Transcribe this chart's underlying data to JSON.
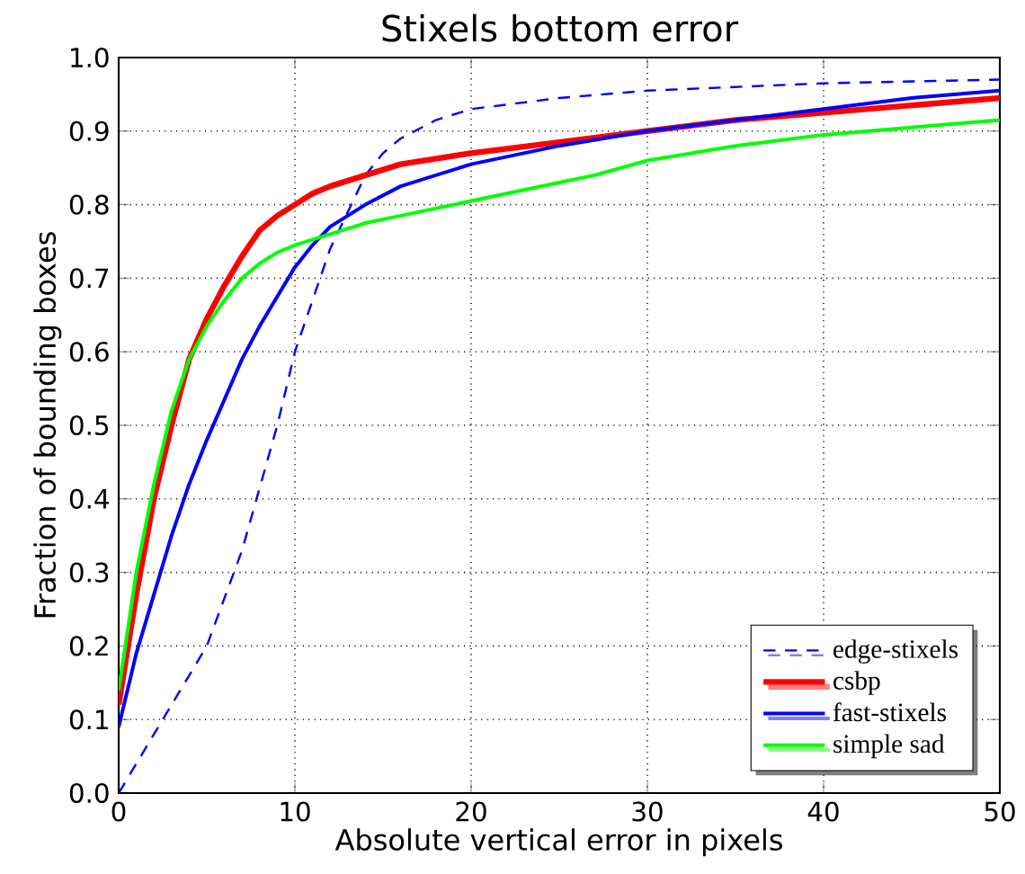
{
  "chart_data": {
    "type": "line",
    "title": "Stixels bottom error",
    "xlabel": "Absolute vertical error in pixels",
    "ylabel": "Fraction of bounding boxes",
    "xlim": [
      0,
      50
    ],
    "ylim": [
      0,
      1
    ],
    "xticks": [
      0,
      10,
      20,
      30,
      40,
      50
    ],
    "yticks": [
      {
        "value": 0,
        "label": "0.0"
      },
      {
        "value": 0.1,
        "label": "0.1"
      },
      {
        "value": 0.2,
        "label": "0.2"
      },
      {
        "value": 0.3,
        "label": "0.3"
      },
      {
        "value": 0.4,
        "label": "0.4"
      },
      {
        "value": 0.5,
        "label": "0.5"
      },
      {
        "value": 0.6,
        "label": "0.6"
      },
      {
        "value": 0.7,
        "label": "0.7"
      },
      {
        "value": 0.8,
        "label": "0.8"
      },
      {
        "value": 0.9,
        "label": "0.9"
      },
      {
        "value": 1,
        "label": "1.0"
      }
    ],
    "grid": true,
    "legend": "bottom right",
    "marker": "none",
    "series": [
      {
        "name": "edge-stixels",
        "color": "#0000ff",
        "line_style": "dashed",
        "x": [
          0,
          1,
          3,
          5,
          7,
          9,
          10,
          11,
          12,
          13,
          14,
          15,
          16,
          18,
          20,
          25,
          30,
          40,
          50
        ],
        "values": [
          0,
          0.04,
          0.12,
          0.2,
          0.33,
          0.5,
          0.6,
          0.67,
          0.74,
          0.79,
          0.84,
          0.87,
          0.89,
          0.915,
          0.93,
          0.945,
          0.955,
          0.965,
          0.97
        ]
      },
      {
        "name": "csbp",
        "color": "#ff0000",
        "line_style": "solid",
        "x": [
          0,
          1,
          2,
          3,
          4,
          5,
          6,
          7,
          8,
          9,
          10,
          11,
          12,
          14,
          16,
          20,
          25,
          30,
          35,
          40,
          45,
          50
        ],
        "values": [
          0.12,
          0.27,
          0.4,
          0.5,
          0.59,
          0.645,
          0.69,
          0.73,
          0.765,
          0.785,
          0.8,
          0.815,
          0.825,
          0.84,
          0.855,
          0.87,
          0.885,
          0.9,
          0.915,
          0.925,
          0.935,
          0.945
        ]
      },
      {
        "name": "fast-stixels",
        "color": "#0000ff",
        "line_style": "solid",
        "x": [
          0,
          1,
          2,
          3,
          4,
          5,
          6,
          7,
          8,
          9,
          10,
          11,
          12,
          14,
          16,
          20,
          25,
          30,
          35,
          40,
          45,
          50
        ],
        "values": [
          0.09,
          0.19,
          0.27,
          0.35,
          0.42,
          0.48,
          0.535,
          0.59,
          0.635,
          0.675,
          0.715,
          0.745,
          0.77,
          0.8,
          0.825,
          0.855,
          0.88,
          0.9,
          0.915,
          0.93,
          0.945,
          0.955
        ]
      },
      {
        "name": "simple sad",
        "color": "#00ff00",
        "line_style": "solid",
        "x": [
          0,
          1,
          2,
          3,
          4,
          5,
          6,
          7,
          8,
          9,
          10,
          12,
          14,
          16,
          20,
          25,
          27,
          30,
          35,
          40,
          45,
          50
        ],
        "values": [
          0.14,
          0.3,
          0.42,
          0.52,
          0.59,
          0.635,
          0.67,
          0.7,
          0.72,
          0.735,
          0.745,
          0.76,
          0.775,
          0.785,
          0.805,
          0.83,
          0.84,
          0.86,
          0.88,
          0.895,
          0.905,
          0.915
        ]
      }
    ]
  }
}
